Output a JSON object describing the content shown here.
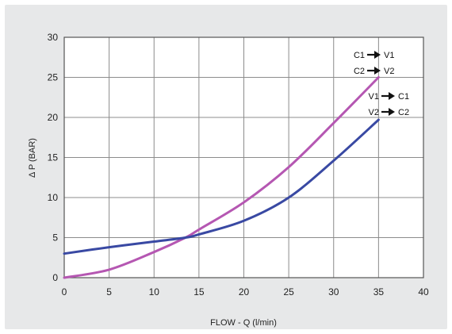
{
  "chart_data": {
    "type": "line",
    "title": "",
    "xlabel": "FLOW - Q (l/min)",
    "ylabel": "Δ P (BAR)",
    "xlim": [
      0,
      40
    ],
    "ylim": [
      0,
      30
    ],
    "x_ticks": [
      0,
      5,
      10,
      15,
      20,
      25,
      30,
      35,
      40
    ],
    "y_ticks": [
      0,
      5,
      10,
      15,
      20,
      25,
      30
    ],
    "grid": true,
    "series": [
      {
        "legend": [
          "C1",
          "V1",
          "C2",
          "V2"
        ],
        "color": "#b557b2",
        "x": [
          0,
          5,
          10,
          13.5,
          15,
          20,
          25,
          30,
          35
        ],
        "values": [
          0,
          1,
          3.2,
          5,
          6,
          9.4,
          13.8,
          19.3,
          25
        ]
      },
      {
        "legend": [
          "V1",
          "C1",
          "V2",
          "C2"
        ],
        "color": "#3949a3",
        "x": [
          0,
          5,
          10,
          13.5,
          15,
          20,
          25,
          30,
          35
        ],
        "values": [
          3,
          3.8,
          4.5,
          5,
          5.4,
          7.1,
          10,
          14.6,
          19.7
        ]
      }
    ]
  }
}
